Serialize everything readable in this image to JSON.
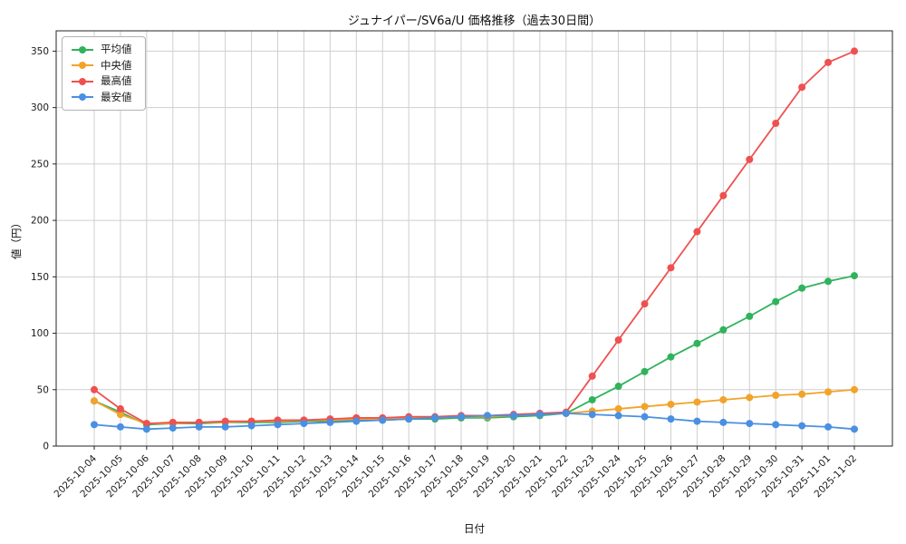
{
  "chart_data": {
    "type": "line",
    "title": "ジュナイパー/SV6a/U 価格推移（過去30日間）",
    "xlabel": "日付",
    "ylabel": "値（円）",
    "ylim": [
      0,
      350
    ],
    "yticks": [
      0,
      50,
      100,
      150,
      200,
      250,
      300,
      350
    ],
    "grid": true,
    "legend_position": "upper-left",
    "categories": [
      "2025-10-04",
      "2025-10-05",
      "2025-10-06",
      "2025-10-07",
      "2025-10-08",
      "2025-10-09",
      "2025-10-10",
      "2025-10-11",
      "2025-10-12",
      "2025-10-13",
      "2025-10-14",
      "2025-10-15",
      "2025-10-16",
      "2025-10-17",
      "2025-10-18",
      "2025-10-19",
      "2025-10-20",
      "2025-10-21",
      "2025-10-22",
      "2025-10-23",
      "2025-10-24",
      "2025-10-25",
      "2025-10-26",
      "2025-10-27",
      "2025-10-28",
      "2025-10-29",
      "2025-10-30",
      "2025-10-31",
      "2025-11-01",
      "2025-11-02"
    ],
    "series": [
      {
        "name": "平均値",
        "color": "#2fb35b",
        "values": [
          40,
          30,
          19,
          20,
          20,
          21,
          21,
          21,
          22,
          22,
          23,
          23,
          24,
          24,
          25,
          25,
          26,
          27,
          29,
          41,
          53,
          66,
          79,
          91,
          103,
          115,
          128,
          140,
          146,
          151
        ]
      },
      {
        "name": "中央値",
        "color": "#f2a32a",
        "values": [
          40,
          28,
          20,
          20,
          21,
          21,
          22,
          22,
          23,
          23,
          24,
          24,
          25,
          25,
          26,
          26,
          27,
          28,
          29,
          31,
          33,
          35,
          37,
          39,
          41,
          43,
          45,
          46,
          48,
          50
        ]
      },
      {
        "name": "最高値",
        "color": "#ef5050",
        "values": [
          50,
          33,
          20,
          21,
          21,
          22,
          22,
          23,
          23,
          24,
          25,
          25,
          26,
          26,
          27,
          27,
          28,
          29,
          30,
          62,
          94,
          126,
          158,
          190,
          222,
          254,
          286,
          318,
          340,
          350
        ]
      },
      {
        "name": "最安値",
        "color": "#4a90e2",
        "values": [
          19,
          17,
          15,
          16,
          17,
          17,
          18,
          19,
          20,
          21,
          22,
          23,
          24,
          25,
          26,
          27,
          27,
          28,
          29,
          28,
          27,
          26,
          24,
          22,
          21,
          20,
          19,
          18,
          17,
          15
        ]
      }
    ]
  }
}
